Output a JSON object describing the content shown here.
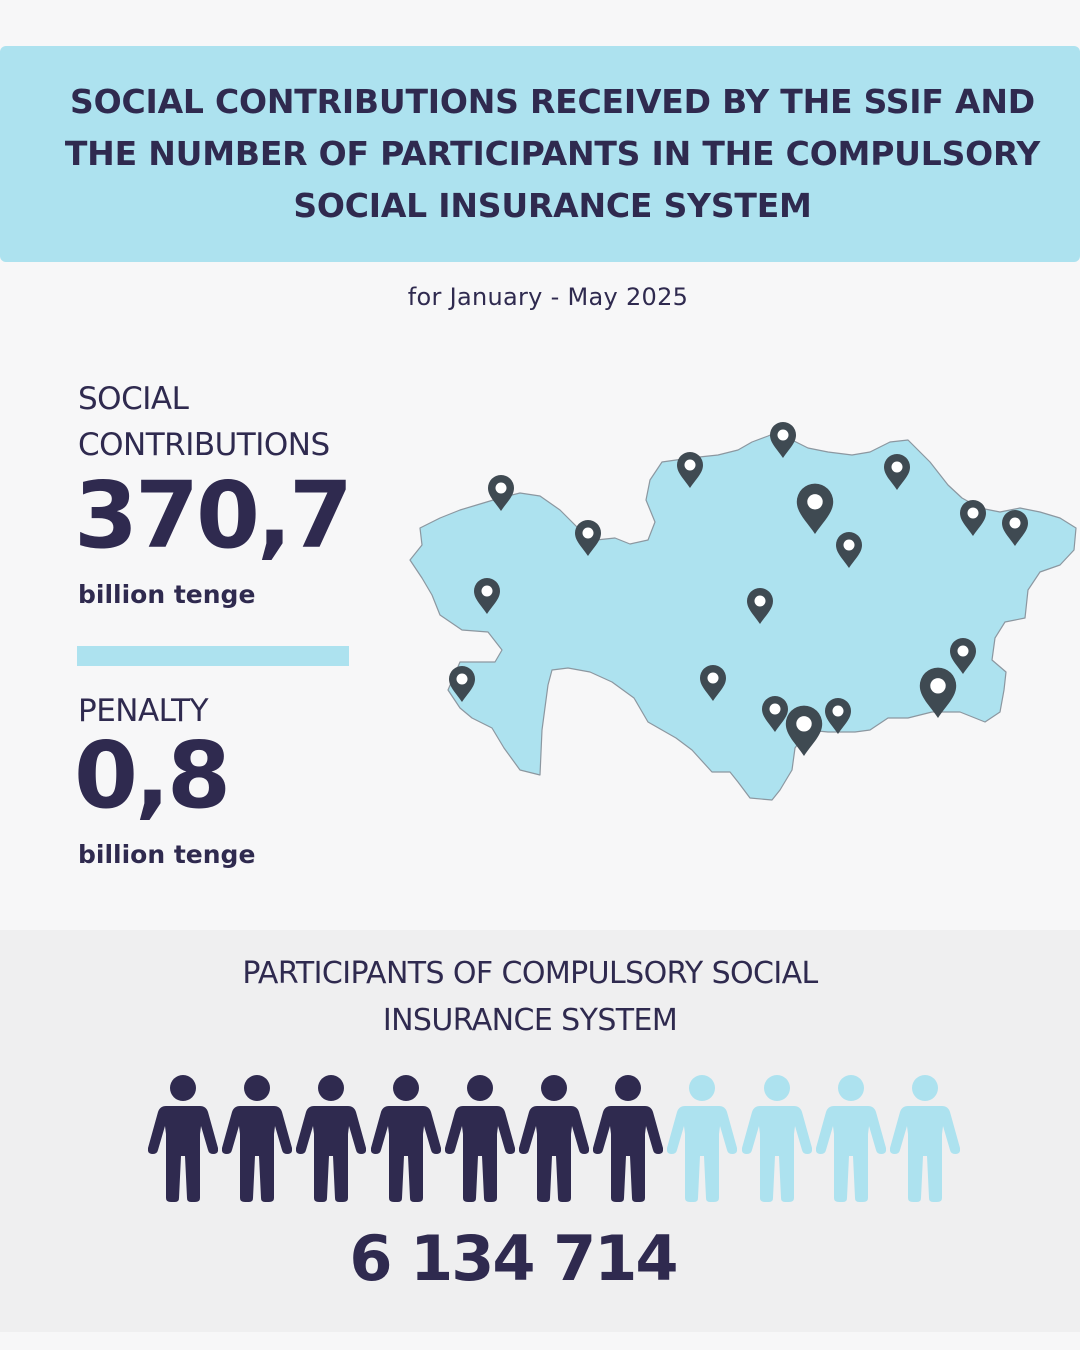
{
  "header": {
    "title": "SOCIAL CONTRIBUTIONS RECEIVED BY THE SSIF AND THE NUMBER OF PARTICIPANTS IN THE COMPULSORY SOCIAL INSURANCE SYSTEM",
    "period": "for January - May 2025"
  },
  "contributions": {
    "label_line1": "SOCIAL",
    "label_line2": "CONTRIBUTIONS",
    "value": "370,7",
    "unit": "billion tenge"
  },
  "penalty": {
    "label": "PENALTY",
    "value": "0,8",
    "unit": "billion tenge"
  },
  "participants": {
    "title_line1": "PARTICIPANTS OF COMPULSORY SOCIAL",
    "title_line2": "INSURANCE SYSTEM",
    "count": "6 134 714",
    "icons_total": 11,
    "icons_filled": 7
  },
  "colors": {
    "dark": "#2f2a4f",
    "light": "#ade2ef",
    "map_fill": "#ade2ef",
    "map_outline": "#8c97a0",
    "pin": "#3f4a52"
  },
  "icons": {
    "map": "kazakhstan-map-icon",
    "pin": "map-pin-icon",
    "person": "person-icon"
  }
}
